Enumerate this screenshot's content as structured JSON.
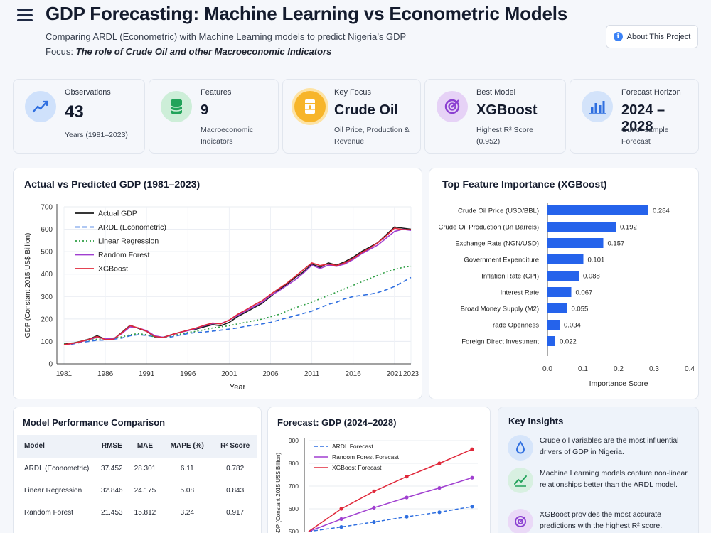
{
  "header": {
    "title": "GDP Forecasting: Machine Learning vs Econometric Models",
    "subtitle": "Comparing ARDL (Econometric) with Machine Learning models to predict Nigeria’s GDP",
    "focus_prefix": "Focus: ",
    "focus_text": "The role of Crude Oil and other Macroeconomic Indicators",
    "about_label": "About This Project"
  },
  "stats": [
    {
      "label": "Observations",
      "value": "43",
      "sub": "Years (1981–2023)",
      "icon": "line-chart-icon",
      "bg": "#eef4fc",
      "accent": "#3b82f6"
    },
    {
      "label": "Features",
      "value": "9",
      "sub": "Macroeconomic Indicators",
      "icon": "database-icon",
      "bg": "#f1f6fa",
      "accent": "#22a35a"
    },
    {
      "label": "Key Focus",
      "value": "Crude Oil",
      "sub": "Oil Price, Production & Revenue",
      "icon": "oil-barrel-icon",
      "bg": "#fff8e6",
      "accent": "#f5a623"
    },
    {
      "label": "Best Model",
      "value": "XGBoost",
      "sub": "Highest R² Score (0.952)",
      "icon": "target-icon",
      "bg": "#f6f1fc",
      "accent": "#8b3fd1"
    },
    {
      "label": "Forecast Horizon",
      "value": "2024 – 2028",
      "sub": "Out-of-sample Forecast",
      "icon": "bar-chart-icon",
      "bg": "#f1f5fb",
      "accent": "#3b82f6"
    }
  ],
  "colors": {
    "actual": "#1a1a1a",
    "ardl": "#2f6fe0",
    "linear": "#2e9e44",
    "rf": "#a03fd0",
    "xgb": "#e0283a",
    "bar": "#2563eb"
  },
  "chart_data": [
    {
      "type": "line",
      "title": "Actual vs Predicted GDP (1981–2023)",
      "xlabel": "Year",
      "ylabel": "GDP (Constant 2015 US$ Billion)",
      "xlim": [
        1981,
        2023
      ],
      "ylim": [
        0,
        700
      ],
      "xticks": [
        1981,
        1986,
        1991,
        1996,
        2001,
        2006,
        2011,
        2016,
        2021,
        2023
      ],
      "yticks": [
        0,
        100,
        200,
        300,
        400,
        500,
        600,
        700
      ],
      "legend": "top-left",
      "x": [
        1981,
        1982,
        1983,
        1984,
        1985,
        1986,
        1987,
        1988,
        1989,
        1990,
        1991,
        1992,
        1993,
        1994,
        1995,
        1996,
        1997,
        1998,
        1999,
        2000,
        2001,
        2002,
        2003,
        2004,
        2005,
        2006,
        2007,
        2008,
        2009,
        2010,
        2011,
        2012,
        2013,
        2014,
        2015,
        2016,
        2017,
        2018,
        2019,
        2020,
        2021,
        2022,
        2023
      ],
      "series": [
        {
          "name": "Actual GDP",
          "key": "actual",
          "dash": "",
          "values": [
            88,
            92,
            100,
            110,
            125,
            110,
            110,
            140,
            172,
            158,
            145,
            120,
            118,
            130,
            140,
            150,
            155,
            165,
            175,
            170,
            185,
            210,
            230,
            250,
            270,
            300,
            330,
            355,
            385,
            410,
            445,
            430,
            450,
            440,
            455,
            475,
            500,
            520,
            540,
            575,
            610,
            605,
            600
          ]
        },
        {
          "name": "ARDL (Econometric)",
          "key": "ardl",
          "dash": "6,4",
          "values": [
            86,
            88,
            95,
            100,
            105,
            106,
            110,
            115,
            125,
            130,
            127,
            120,
            118,
            120,
            128,
            135,
            140,
            142,
            146,
            150,
            155,
            160,
            168,
            172,
            178,
            185,
            195,
            205,
            215,
            225,
            235,
            250,
            265,
            275,
            290,
            300,
            305,
            310,
            318,
            330,
            345,
            365,
            385
          ]
        },
        {
          "name": "Linear Regression",
          "key": "linear",
          "dash": "2,3",
          "values": [
            90,
            93,
            100,
            105,
            110,
            112,
            115,
            120,
            130,
            135,
            130,
            120,
            118,
            125,
            132,
            140,
            145,
            152,
            160,
            165,
            170,
            178,
            185,
            192,
            200,
            210,
            220,
            235,
            250,
            262,
            275,
            290,
            305,
            320,
            335,
            350,
            365,
            380,
            395,
            410,
            420,
            430,
            435
          ]
        },
        {
          "name": "Random Forest",
          "key": "rf",
          "dash": "",
          "values": [
            85,
            90,
            98,
            108,
            118,
            112,
            112,
            135,
            165,
            160,
            148,
            125,
            118,
            128,
            140,
            148,
            158,
            170,
            180,
            180,
            195,
            215,
            235,
            255,
            275,
            305,
            325,
            350,
            375,
            405,
            440,
            425,
            440,
            435,
            445,
            465,
            490,
            510,
            530,
            560,
            590,
            600,
            595
          ]
        },
        {
          "name": "XGBoost",
          "key": "xgb",
          "dash": "",
          "values": [
            86,
            91,
            99,
            109,
            122,
            108,
            110,
            138,
            170,
            160,
            145,
            122,
            117,
            130,
            140,
            150,
            160,
            172,
            182,
            178,
            195,
            220,
            240,
            262,
            282,
            310,
            335,
            360,
            390,
            420,
            450,
            438,
            445,
            438,
            450,
            470,
            495,
            515,
            540,
            570,
            605,
            598,
            598
          ]
        }
      ]
    },
    {
      "type": "bar",
      "orientation": "horizontal",
      "title": "Top Feature Importance (XGBoost)",
      "xlabel": "Importance Score",
      "xlim": [
        0,
        0.4
      ],
      "xticks": [
        0.0,
        0.1,
        0.2,
        0.3,
        0.4
      ],
      "categories": [
        "Crude Oil Price (USD/BBL)",
        "Crude Oil Production (Bn Barrels)",
        "Exchange Rate (NGN/USD)",
        "Government Expenditure",
        "Inflation Rate (CPI)",
        "Interest Rate",
        "Broad Money Supply (M2)",
        "Trade Openness",
        "Foreign Direct Investment"
      ],
      "values": [
        0.284,
        0.192,
        0.157,
        0.101,
        0.088,
        0.067,
        0.055,
        0.034,
        0.022
      ]
    },
    {
      "type": "line",
      "title": "Forecast: GDP (2024–2028)",
      "ylabel": "GDP (Constant 2015 US$ Billion)",
      "ylim": [
        500,
        900
      ],
      "yticks": [
        500,
        600,
        700,
        800,
        900
      ],
      "legend": "top-left",
      "x": [
        2023,
        2024,
        2025,
        2026,
        2027,
        2028
      ],
      "series": [
        {
          "name": "ARDL Forecast",
          "key": "ardl",
          "dash": "5,3",
          "values": [
            500,
            520,
            542,
            565,
            585,
            610
          ]
        },
        {
          "name": "Random Forest Forecast",
          "key": "rf",
          "dash": "",
          "values": [
            500,
            555,
            605,
            650,
            692,
            737
          ]
        },
        {
          "name": "XGBoost Forecast",
          "key": "xgb",
          "dash": "",
          "values": [
            500,
            600,
            677,
            742,
            800,
            862
          ]
        }
      ]
    }
  ],
  "performance": {
    "title": "Model Performance Comparison",
    "headers": [
      "Model",
      "RMSE",
      "MAE",
      "MAPE (%)",
      "R² Score"
    ],
    "rows": [
      [
        "ARDL (Econometric)",
        "37.452",
        "28.301",
        "6.11",
        "0.782"
      ],
      [
        "Linear Regression",
        "32.846",
        "24.175",
        "5.08",
        "0.843"
      ],
      [
        "Random Forest",
        "21.453",
        "15.812",
        "3.24",
        "0.917"
      ]
    ]
  },
  "insights": {
    "title": "Key Insights",
    "items": [
      {
        "text": "Crude oil variables are the most influential drivers of GDP in Nigeria.",
        "icon": "droplet-icon",
        "color": "#2f6fe0"
      },
      {
        "text": "Machine Learning models capture non-linear relationships better than the ARDL model.",
        "icon": "trend-icon",
        "color": "#22a35a"
      },
      {
        "text": "XGBoost provides the most accurate predictions with the highest R² score.",
        "icon": "target-icon",
        "color": "#8b3fd1"
      }
    ]
  }
}
